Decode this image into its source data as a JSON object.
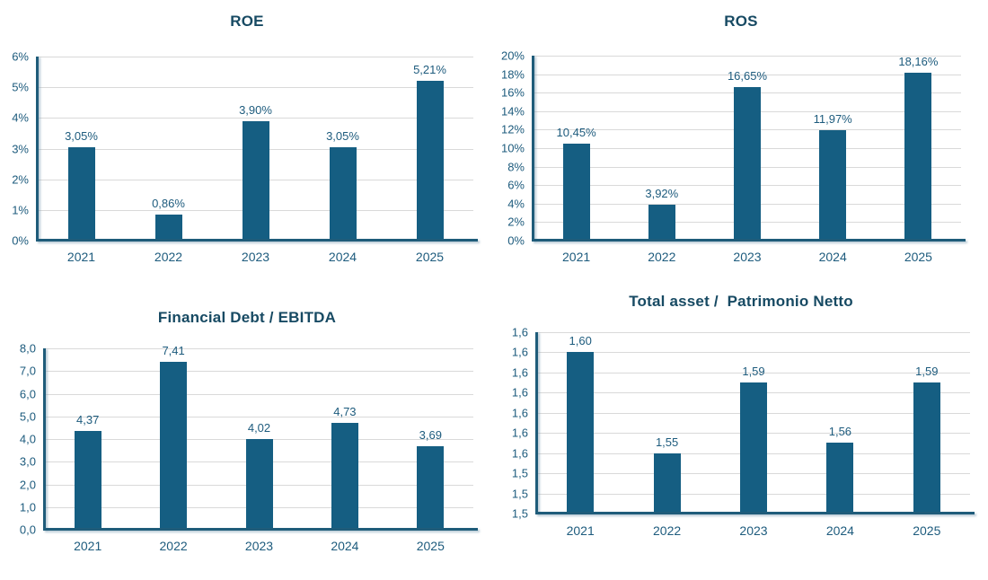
{
  "colors": {
    "bar": "#155e82",
    "title": "#174a63",
    "text": "#1d5b7d",
    "axis": "#1f5c7a",
    "gridline": "#d9d9d9",
    "background": "#ffffff"
  },
  "chart_data": [
    {
      "id": "roe",
      "type": "bar",
      "title": "ROE",
      "categories": [
        "2021",
        "2022",
        "2023",
        "2024",
        "2025"
      ],
      "values": [
        3.05,
        0.86,
        3.9,
        3.05,
        5.21
      ],
      "value_labels": [
        "3,05%",
        "0,86%",
        "3,90%",
        "3,05%",
        "5,21%"
      ],
      "xlabel": "",
      "ylabel": "",
      "ylim": [
        0,
        6
      ],
      "tick_labels": [
        "6%",
        "5%",
        "4%",
        "3%",
        "2%",
        "1%",
        "0%"
      ],
      "grid": true,
      "legend": "none"
    },
    {
      "id": "ros",
      "type": "bar",
      "title": "ROS",
      "categories": [
        "2021",
        "2022",
        "2023",
        "2024",
        "2025"
      ],
      "values": [
        10.45,
        3.92,
        16.65,
        11.97,
        18.16
      ],
      "value_labels": [
        "10,45%",
        "3,92%",
        "16,65%",
        "11,97%",
        "18,16%"
      ],
      "xlabel": "",
      "ylabel": "",
      "ylim": [
        0,
        20
      ],
      "tick_labels": [
        "20%",
        "18%",
        "16%",
        "14%",
        "12%",
        "10%",
        "8%",
        "6%",
        "4%",
        "2%",
        "0%"
      ],
      "grid": true,
      "legend": "none"
    },
    {
      "id": "financial-debt-ebitda",
      "type": "bar",
      "title": "Financial Debt / EBITDA",
      "categories": [
        "2021",
        "2022",
        "2023",
        "2024",
        "2025"
      ],
      "values": [
        4.37,
        7.41,
        4.02,
        4.73,
        3.69
      ],
      "value_labels": [
        "4,37",
        "7,41",
        "4,02",
        "4,73",
        "3,69"
      ],
      "xlabel": "",
      "ylabel": "",
      "ylim": [
        0,
        8
      ],
      "tick_labels": [
        "8,0",
        "7,0",
        "6,0",
        "5,0",
        "4,0",
        "3,0",
        "2,0",
        "1,0",
        "0,0"
      ],
      "grid": true,
      "legend": "none"
    },
    {
      "id": "total-asset-patrimonio-netto",
      "type": "bar",
      "title": "Total asset /  Patrimonio Netto",
      "categories": [
        "2021",
        "2022",
        "2023",
        "2024",
        "2025"
      ],
      "values": [
        1.6,
        1.55,
        1.59,
        1.56,
        1.59
      ],
      "plot_values": [
        1.6,
        1.55,
        1.585,
        1.555,
        1.585
      ],
      "value_labels": [
        "1,60",
        "1,55",
        "1,59",
        "1,56",
        "1,59"
      ],
      "xlabel": "",
      "ylabel": "",
      "ylim": [
        1.52,
        1.61
      ],
      "tick_labels": [
        "1,6",
        "1,6",
        "1,6",
        "1,6",
        "1,6",
        "1,6",
        "1,6",
        "1,5",
        "1,5",
        "1,5"
      ],
      "grid": true,
      "legend": "none"
    }
  ]
}
